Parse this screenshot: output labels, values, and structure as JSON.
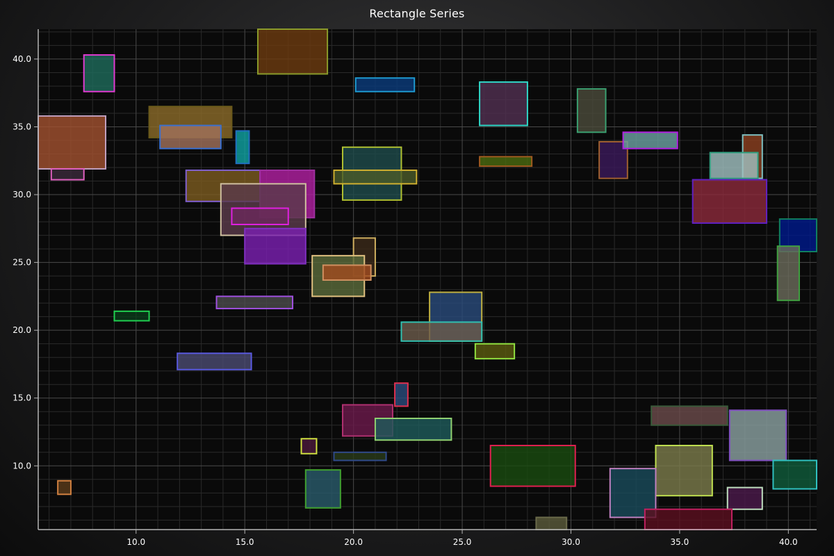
{
  "chart_data": {
    "type": "rectangle",
    "title": "Rectangle Series",
    "xlabel": "",
    "ylabel": "",
    "xlim": [
      5.5,
      41.3
    ],
    "ylim": [
      5.3,
      42.2
    ],
    "grid": true,
    "x_ticks": [
      {
        "value": 10,
        "label": "10.0"
      },
      {
        "value": 15,
        "label": "15.0"
      },
      {
        "value": 20,
        "label": "20.0"
      },
      {
        "value": 25,
        "label": "25.0"
      },
      {
        "value": 30,
        "label": "30.0"
      },
      {
        "value": 35,
        "label": "35.0"
      },
      {
        "value": 40,
        "label": "40.0"
      }
    ],
    "y_ticks": [
      {
        "value": 10,
        "label": "10.0"
      },
      {
        "value": 15,
        "label": "15.0"
      },
      {
        "value": 20,
        "label": "20.0"
      },
      {
        "value": 25,
        "label": "25.0"
      },
      {
        "value": 30,
        "label": "30.0"
      },
      {
        "value": 35,
        "label": "35.0"
      },
      {
        "value": 40,
        "label": "40.0"
      }
    ],
    "colors": {
      "background": "#0f0f10",
      "axis": "#b5b5b5",
      "grid": "#4a4a4a"
    },
    "rectangles": [
      {
        "x1": 15.6,
        "y1": 38.9,
        "x2": 18.8,
        "y2": 42.2,
        "fill": "#6b3a10",
        "stroke": "#8a9a2a"
      },
      {
        "x1": 7.6,
        "y1": 37.6,
        "x2": 9.0,
        "y2": 40.3,
        "fill": "#1f6a5a",
        "stroke": "#e03ad0"
      },
      {
        "x1": 20.1,
        "y1": 37.6,
        "x2": 22.8,
        "y2": 38.6,
        "fill": "#0b3a7a",
        "stroke": "#1e9ad0"
      },
      {
        "x1": 25.8,
        "y1": 35.1,
        "x2": 28.0,
        "y2": 38.3,
        "fill": "#503050",
        "stroke": "#30d8c8"
      },
      {
        "x1": 30.3,
        "y1": 34.6,
        "x2": 31.6,
        "y2": 37.8,
        "fill": "#4a4a3a",
        "stroke": "#3aa070"
      },
      {
        "x1": 10.6,
        "y1": 34.2,
        "x2": 14.4,
        "y2": 36.5,
        "fill": "#8a6a2a",
        "stroke": "#6a5a1a"
      },
      {
        "x1": 5.5,
        "y1": 31.9,
        "x2": 8.6,
        "y2": 35.8,
        "fill": "#a05030",
        "stroke": "#c0a0c0"
      },
      {
        "x1": 6.1,
        "y1": 31.1,
        "x2": 7.6,
        "y2": 31.9,
        "fill": "#3a2a3a",
        "stroke": "#e060c0"
      },
      {
        "x1": 11.1,
        "y1": 33.4,
        "x2": 13.9,
        "y2": 35.1,
        "fill": "#a0705a",
        "stroke": "#3a70d0"
      },
      {
        "x1": 14.6,
        "y1": 32.3,
        "x2": 15.2,
        "y2": 34.7,
        "fill": "#10a0a0",
        "stroke": "#2070c0"
      },
      {
        "x1": 19.5,
        "y1": 29.6,
        "x2": 22.2,
        "y2": 33.5,
        "fill": "#1e4a4a",
        "stroke": "#b0c030"
      },
      {
        "x1": 19.1,
        "y1": 30.8,
        "x2": 22.9,
        "y2": 31.8,
        "fill": "#4a5a2a",
        "stroke": "#d0b030"
      },
      {
        "x1": 25.8,
        "y1": 32.1,
        "x2": 28.2,
        "y2": 32.8,
        "fill": "#4a6a10",
        "stroke": "#a05a20"
      },
      {
        "x1": 31.3,
        "y1": 31.2,
        "x2": 32.6,
        "y2": 33.9,
        "fill": "#3a1a5a",
        "stroke": "#a06030"
      },
      {
        "x1": 32.4,
        "y1": 33.4,
        "x2": 34.9,
        "y2": 34.6,
        "fill": "#6aa0a0",
        "stroke": "#b020e0"
      },
      {
        "x1": 37.9,
        "y1": 31.2,
        "x2": 38.8,
        "y2": 34.4,
        "fill": "#8a4020",
        "stroke": "#80c0c0"
      },
      {
        "x1": 36.4,
        "y1": 31.2,
        "x2": 38.6,
        "y2": 33.1,
        "fill": "#a0c0c0",
        "stroke": "#30a080"
      },
      {
        "x1": 12.3,
        "y1": 29.5,
        "x2": 15.7,
        "y2": 31.8,
        "fill": "#7a5a20",
        "stroke": "#8060d0"
      },
      {
        "x1": 15.7,
        "y1": 28.3,
        "x2": 18.2,
        "y2": 31.8,
        "fill": "#b020a0",
        "stroke": "#a030a0"
      },
      {
        "x1": 13.9,
        "y1": 27.0,
        "x2": 17.8,
        "y2": 30.8,
        "fill": "#5a3a4a",
        "stroke": "#d0c0a0"
      },
      {
        "x1": 14.4,
        "y1": 27.8,
        "x2": 17.0,
        "y2": 29.0,
        "fill": "#6a2a5a",
        "stroke": "#e020e0"
      },
      {
        "x1": 35.6,
        "y1": 27.9,
        "x2": 39.0,
        "y2": 31.1,
        "fill": "#8a2a3a",
        "stroke": "#6020c0"
      },
      {
        "x1": 15.0,
        "y1": 24.9,
        "x2": 17.8,
        "y2": 27.5,
        "fill": "#7a20b0",
        "stroke": "#8030c0"
      },
      {
        "x1": 39.6,
        "y1": 25.8,
        "x2": 41.3,
        "y2": 28.2,
        "fill": "#001a8a",
        "stroke": "#108060"
      },
      {
        "x1": 39.5,
        "y1": 22.2,
        "x2": 40.5,
        "y2": 26.2,
        "fill": "#6a6a5a",
        "stroke": "#40a040"
      },
      {
        "x1": 20.0,
        "y1": 24.0,
        "x2": 21.0,
        "y2": 26.8,
        "fill": "#3a2a1a",
        "stroke": "#d0b060"
      },
      {
        "x1": 18.1,
        "y1": 22.5,
        "x2": 20.5,
        "y2": 25.5,
        "fill": "#5a6a3a",
        "stroke": "#e0c080"
      },
      {
        "x1": 18.6,
        "y1": 23.7,
        "x2": 20.8,
        "y2": 24.8,
        "fill": "#a04a20",
        "stroke": "#d09060"
      },
      {
        "x1": 13.7,
        "y1": 21.6,
        "x2": 17.2,
        "y2": 22.5,
        "fill": "#4a4a4a",
        "stroke": "#a050e0"
      },
      {
        "x1": 9.0,
        "y1": 20.7,
        "x2": 10.6,
        "y2": 21.4,
        "fill": "#0a3a1a",
        "stroke": "#20d050"
      },
      {
        "x1": 23.5,
        "y1": 19.2,
        "x2": 25.9,
        "y2": 22.8,
        "fill": "#2a4a7a",
        "stroke": "#c0b040"
      },
      {
        "x1": 22.2,
        "y1": 19.2,
        "x2": 25.9,
        "y2": 20.6,
        "fill": "#6a5a4a",
        "stroke": "#30c0b0"
      },
      {
        "x1": 25.6,
        "y1": 17.9,
        "x2": 27.4,
        "y2": 19.0,
        "fill": "#5a5a10",
        "stroke": "#90e040"
      },
      {
        "x1": 11.9,
        "y1": 17.1,
        "x2": 15.3,
        "y2": 18.3,
        "fill": "#4a4a70",
        "stroke": "#5a5ae0"
      },
      {
        "x1": 21.9,
        "y1": 14.4,
        "x2": 22.5,
        "y2": 16.1,
        "fill": "#2a4a7a",
        "stroke": "#e03050"
      },
      {
        "x1": 19.5,
        "y1": 12.2,
        "x2": 21.8,
        "y2": 14.5,
        "fill": "#6a1a4a",
        "stroke": "#b03070"
      },
      {
        "x1": 21.0,
        "y1": 11.9,
        "x2": 24.5,
        "y2": 13.5,
        "fill": "#1e5a5a",
        "stroke": "#90d070"
      },
      {
        "x1": 17.6,
        "y1": 10.9,
        "x2": 18.3,
        "y2": 12.0,
        "fill": "#4a1a3a",
        "stroke": "#d0e040"
      },
      {
        "x1": 19.1,
        "y1": 10.4,
        "x2": 21.5,
        "y2": 11.0,
        "fill": "#2a3a1a",
        "stroke": "#304a8a"
      },
      {
        "x1": 33.7,
        "y1": 13.0,
        "x2": 37.2,
        "y2": 14.4,
        "fill": "#6a4a4a",
        "stroke": "#3a5a3a"
      },
      {
        "x1": 37.3,
        "y1": 10.4,
        "x2": 39.9,
        "y2": 14.1,
        "fill": "#8aa0a0",
        "stroke": "#8050c0"
      },
      {
        "x1": 26.3,
        "y1": 8.5,
        "x2": 30.2,
        "y2": 11.5,
        "fill": "#1a4a10",
        "stroke": "#e02050"
      },
      {
        "x1": 33.9,
        "y1": 7.8,
        "x2": 36.5,
        "y2": 11.5,
        "fill": "#7a7a4a",
        "stroke": "#c0e050"
      },
      {
        "x1": 39.3,
        "y1": 8.3,
        "x2": 41.3,
        "y2": 10.4,
        "fill": "#105a3a",
        "stroke": "#30c0c0"
      },
      {
        "x1": 17.8,
        "y1": 6.9,
        "x2": 19.4,
        "y2": 9.7,
        "fill": "#2a5a6a",
        "stroke": "#40a030"
      },
      {
        "x1": 6.4,
        "y1": 7.9,
        "x2": 7.0,
        "y2": 8.9,
        "fill": "#5a3a1a",
        "stroke": "#d08040"
      },
      {
        "x1": 31.8,
        "y1": 6.2,
        "x2": 33.9,
        "y2": 9.8,
        "fill": "#1a4a5a",
        "stroke": "#c080c0"
      },
      {
        "x1": 37.2,
        "y1": 6.8,
        "x2": 38.8,
        "y2": 8.4,
        "fill": "#4a1a4a",
        "stroke": "#c0e0c0"
      },
      {
        "x1": 33.4,
        "y1": 5.3,
        "x2": 37.4,
        "y2": 6.8,
        "fill": "#5a1020",
        "stroke": "#c02060"
      },
      {
        "x1": 28.4,
        "y1": 5.3,
        "x2": 29.8,
        "y2": 6.2,
        "fill": "#5a5a3a",
        "stroke": "#6a6a4a"
      }
    ]
  }
}
